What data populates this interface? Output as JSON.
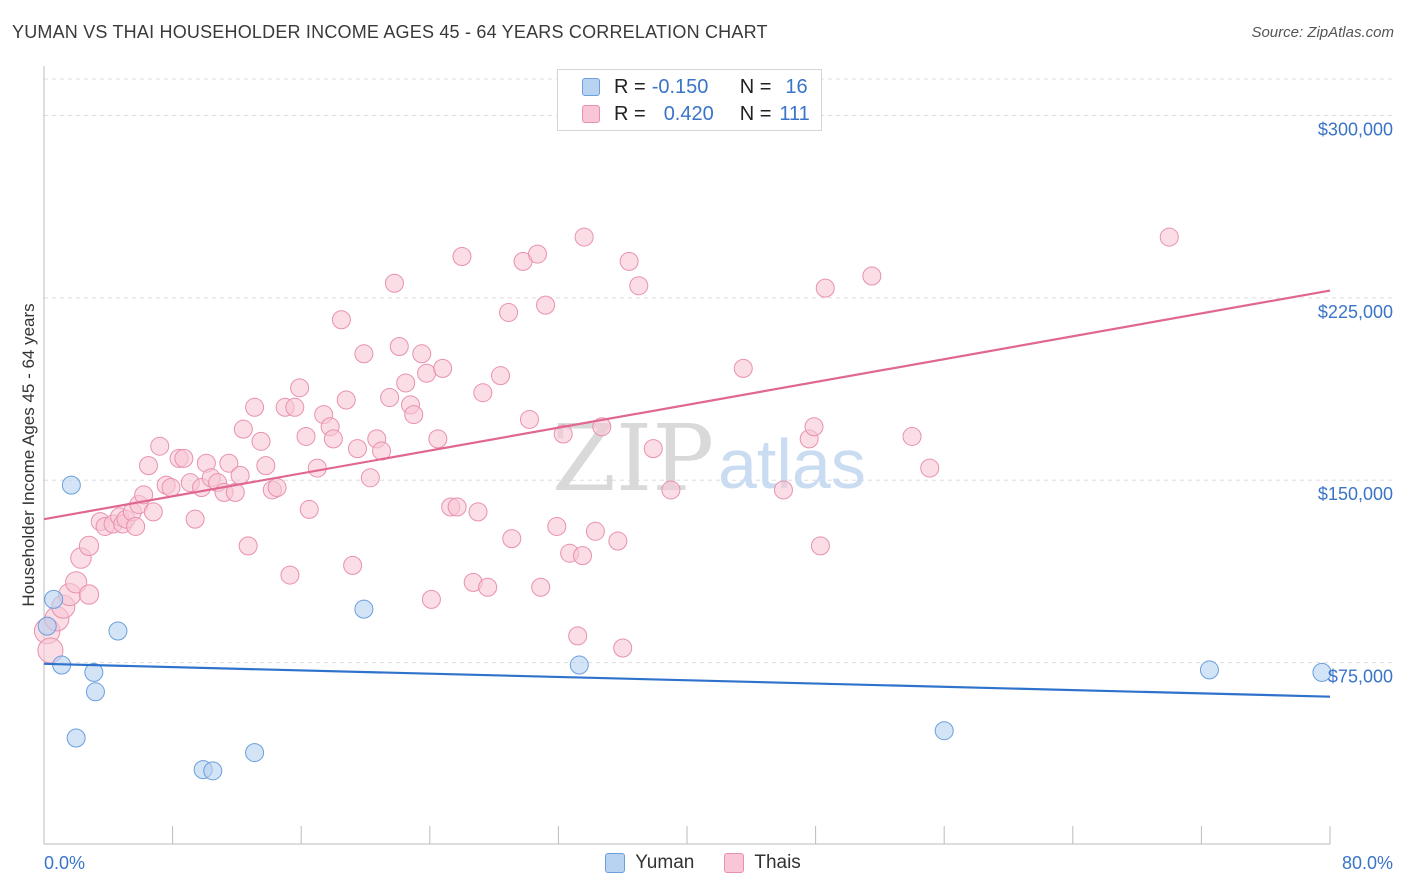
{
  "header": {
    "title": "YUMAN VS THAI HOUSEHOLDER INCOME AGES 45 - 64 YEARS CORRELATION CHART",
    "source": "Source: ZipAtlas.com"
  },
  "legend": {
    "rows": [
      {
        "r_label": "R =",
        "r_value": "-0.150",
        "n_label": "N =",
        "n_value": "16"
      },
      {
        "r_label": "R =",
        "r_value": "0.420",
        "n_label": "N =",
        "n_value": "111"
      }
    ]
  },
  "bottom_legend": {
    "yuman": "Yuman",
    "thais": "Thais"
  },
  "watermark": {
    "zip": "ZIP",
    "atlas": "atlas"
  },
  "colors": {
    "yuman_fill": "#b8d2f2",
    "yuman_stroke": "#6a9fdc",
    "yuman_line": "#2f72cc",
    "thais_fill": "#f8c6d6",
    "thais_stroke": "#e891ae",
    "thais_line": "#e0678f",
    "axis_label": "#3a74c8",
    "grid": "#dddddd"
  },
  "chart_data": {
    "type": "scatter",
    "title": "YUMAN VS THAI HOUSEHOLDER INCOME AGES 45 - 64 YEARS CORRELATION CHART",
    "xlabel": "",
    "ylabel": "Householder Income Ages 45 - 64 years",
    "x_unit": "%",
    "xlim": [
      0,
      80
    ],
    "ylim": [
      0,
      315000
    ],
    "x_tick_labels": [
      "0.0%",
      "80.0%"
    ],
    "y_ticks": [
      75000,
      150000,
      225000,
      300000
    ],
    "y_tick_labels": [
      "$75,000",
      "$150,000",
      "$225,000",
      "$300,000"
    ],
    "grid": "horizontal dashed",
    "legend_position": "top-center",
    "series": [
      {
        "name": "Yuman",
        "r": -0.15,
        "n": 16,
        "trend": {
          "x": [
            0,
            80
          ],
          "y": [
            74500,
            61000
          ]
        },
        "points": [
          {
            "x": 0.2,
            "y": 90000
          },
          {
            "x": 0.6,
            "y": 101000
          },
          {
            "x": 1.1,
            "y": 74000
          },
          {
            "x": 1.7,
            "y": 148000
          },
          {
            "x": 2.0,
            "y": 44000
          },
          {
            "x": 3.1,
            "y": 71000
          },
          {
            "x": 3.2,
            "y": 63000
          },
          {
            "x": 4.6,
            "y": 88000
          },
          {
            "x": 9.9,
            "y": 31000
          },
          {
            "x": 10.5,
            "y": 30500
          },
          {
            "x": 13.1,
            "y": 38000
          },
          {
            "x": 19.9,
            "y": 97000
          },
          {
            "x": 33.3,
            "y": 74000
          },
          {
            "x": 56.0,
            "y": 47000
          },
          {
            "x": 72.5,
            "y": 72000
          },
          {
            "x": 79.5,
            "y": 71000
          }
        ]
      },
      {
        "name": "Thais",
        "r": 0.42,
        "n": 111,
        "trend": {
          "x": [
            0,
            80
          ],
          "y": [
            134000,
            228000
          ]
        },
        "points": [
          {
            "x": 0.2,
            "y": 88000
          },
          {
            "x": 0.4,
            "y": 80000
          },
          {
            "x": 0.8,
            "y": 93000
          },
          {
            "x": 1.2,
            "y": 98000
          },
          {
            "x": 1.6,
            "y": 103000
          },
          {
            "x": 2.0,
            "y": 108000
          },
          {
            "x": 2.3,
            "y": 118000
          },
          {
            "x": 2.8,
            "y": 103000
          },
          {
            "x": 2.8,
            "y": 123000
          },
          {
            "x": 3.5,
            "y": 133000
          },
          {
            "x": 3.8,
            "y": 131000
          },
          {
            "x": 4.3,
            "y": 132000
          },
          {
            "x": 4.7,
            "y": 135000
          },
          {
            "x": 4.9,
            "y": 132000
          },
          {
            "x": 5.1,
            "y": 134000
          },
          {
            "x": 5.5,
            "y": 137000
          },
          {
            "x": 5.7,
            "y": 131000
          },
          {
            "x": 5.9,
            "y": 140000
          },
          {
            "x": 6.2,
            "y": 144000
          },
          {
            "x": 6.5,
            "y": 156000
          },
          {
            "x": 6.8,
            "y": 137000
          },
          {
            "x": 7.2,
            "y": 164000
          },
          {
            "x": 7.6,
            "y": 148000
          },
          {
            "x": 7.9,
            "y": 147000
          },
          {
            "x": 8.4,
            "y": 159000
          },
          {
            "x": 8.7,
            "y": 159000
          },
          {
            "x": 9.1,
            "y": 149000
          },
          {
            "x": 9.4,
            "y": 134000
          },
          {
            "x": 9.8,
            "y": 147000
          },
          {
            "x": 10.1,
            "y": 157000
          },
          {
            "x": 10.4,
            "y": 151000
          },
          {
            "x": 10.8,
            "y": 149000
          },
          {
            "x": 11.2,
            "y": 145000
          },
          {
            "x": 11.5,
            "y": 157000
          },
          {
            "x": 11.9,
            "y": 145000
          },
          {
            "x": 12.2,
            "y": 152000
          },
          {
            "x": 12.4,
            "y": 171000
          },
          {
            "x": 12.7,
            "y": 123000
          },
          {
            "x": 13.1,
            "y": 180000
          },
          {
            "x": 13.5,
            "y": 166000
          },
          {
            "x": 13.8,
            "y": 156000
          },
          {
            "x": 14.2,
            "y": 146000
          },
          {
            "x": 14.5,
            "y": 147000
          },
          {
            "x": 15.0,
            "y": 180000
          },
          {
            "x": 15.3,
            "y": 111000
          },
          {
            "x": 15.6,
            "y": 180000
          },
          {
            "x": 15.9,
            "y": 188000
          },
          {
            "x": 16.3,
            "y": 168000
          },
          {
            "x": 16.5,
            "y": 138000
          },
          {
            "x": 17.0,
            "y": 155000
          },
          {
            "x": 17.4,
            "y": 177000
          },
          {
            "x": 17.8,
            "y": 172000
          },
          {
            "x": 18.0,
            "y": 167000
          },
          {
            "x": 18.5,
            "y": 216000
          },
          {
            "x": 18.8,
            "y": 183000
          },
          {
            "x": 19.2,
            "y": 115000
          },
          {
            "x": 19.5,
            "y": 163000
          },
          {
            "x": 19.9,
            "y": 202000
          },
          {
            "x": 20.3,
            "y": 151000
          },
          {
            "x": 20.7,
            "y": 167000
          },
          {
            "x": 21.0,
            "y": 162000
          },
          {
            "x": 21.5,
            "y": 184000
          },
          {
            "x": 21.8,
            "y": 231000
          },
          {
            "x": 22.1,
            "y": 205000
          },
          {
            "x": 22.5,
            "y": 190000
          },
          {
            "x": 22.8,
            "y": 181000
          },
          {
            "x": 23.0,
            "y": 177000
          },
          {
            "x": 23.5,
            "y": 202000
          },
          {
            "x": 23.8,
            "y": 194000
          },
          {
            "x": 24.1,
            "y": 101000
          },
          {
            "x": 24.5,
            "y": 167000
          },
          {
            "x": 24.8,
            "y": 196000
          },
          {
            "x": 25.3,
            "y": 139000
          },
          {
            "x": 25.7,
            "y": 139000
          },
          {
            "x": 26.0,
            "y": 242000
          },
          {
            "x": 26.7,
            "y": 108000
          },
          {
            "x": 27.0,
            "y": 137000
          },
          {
            "x": 27.3,
            "y": 186000
          },
          {
            "x": 27.6,
            "y": 106000
          },
          {
            "x": 28.4,
            "y": 193000
          },
          {
            "x": 28.9,
            "y": 219000
          },
          {
            "x": 29.1,
            "y": 126000
          },
          {
            "x": 29.8,
            "y": 240000
          },
          {
            "x": 30.2,
            "y": 175000
          },
          {
            "x": 30.7,
            "y": 243000
          },
          {
            "x": 30.9,
            "y": 106000
          },
          {
            "x": 31.2,
            "y": 222000
          },
          {
            "x": 31.9,
            "y": 131000
          },
          {
            "x": 32.3,
            "y": 169000
          },
          {
            "x": 32.7,
            "y": 120000
          },
          {
            "x": 33.2,
            "y": 86000
          },
          {
            "x": 33.5,
            "y": 119000
          },
          {
            "x": 33.6,
            "y": 250000
          },
          {
            "x": 34.3,
            "y": 129000
          },
          {
            "x": 34.7,
            "y": 172000
          },
          {
            "x": 35.7,
            "y": 125000
          },
          {
            "x": 36.0,
            "y": 81000
          },
          {
            "x": 36.4,
            "y": 240000
          },
          {
            "x": 37.0,
            "y": 230000
          },
          {
            "x": 37.9,
            "y": 163000
          },
          {
            "x": 39.0,
            "y": 146000
          },
          {
            "x": 43.5,
            "y": 196000
          },
          {
            "x": 46.0,
            "y": 146000
          },
          {
            "x": 47.6,
            "y": 167000
          },
          {
            "x": 47.9,
            "y": 172000
          },
          {
            "x": 48.3,
            "y": 123000
          },
          {
            "x": 48.6,
            "y": 229000
          },
          {
            "x": 51.5,
            "y": 234000
          },
          {
            "x": 54.0,
            "y": 168000
          },
          {
            "x": 55.1,
            "y": 155000
          },
          {
            "x": 70.0,
            "y": 250000
          }
        ]
      }
    ]
  }
}
